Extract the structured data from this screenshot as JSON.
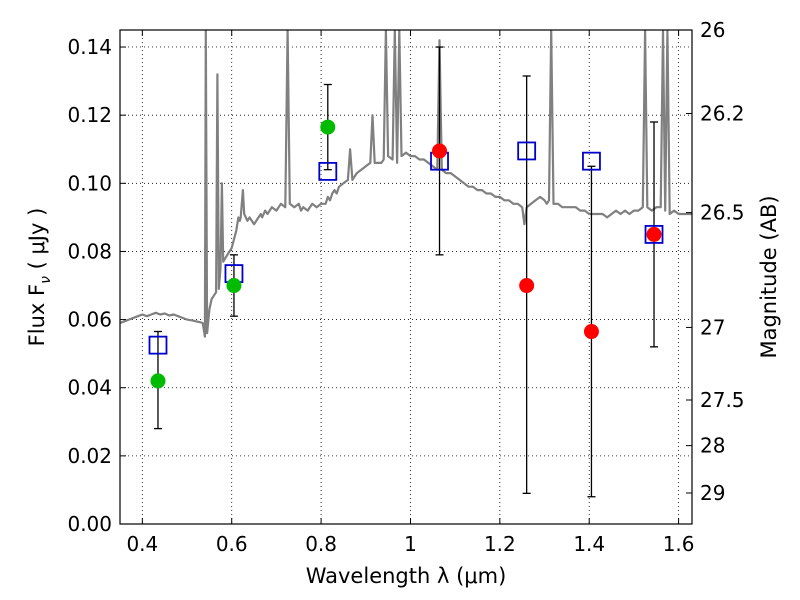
{
  "chart_data": {
    "type": "scatter",
    "xlabel": "Wavelength  λ (μm)",
    "ylabel": "Flux  F",
    "ylabel_subscript": "ν",
    "ylabel_unit": " ( μJy )",
    "y2label": "Magnitude (AB)",
    "xlim": [
      0.35,
      1.63
    ],
    "ylim": [
      0.0,
      0.145
    ],
    "grid": true,
    "x_ticks": [
      0.4,
      0.6,
      0.8,
      1.0,
      1.2,
      1.4,
      1.6
    ],
    "x_tick_labels": [
      "0.4",
      "0.6",
      "0.8",
      "1",
      "1.2",
      "1.4",
      "1.6"
    ],
    "y_ticks": [
      0.0,
      0.02,
      0.04,
      0.06,
      0.08,
      0.1,
      0.12,
      0.14
    ],
    "y_tick_labels": [
      "0.00",
      "0.02",
      "0.04",
      "0.06",
      "0.08",
      "0.10",
      "0.12",
      "0.14"
    ],
    "y2_ticks": [
      {
        "label": "26",
        "flux": 0.145
      },
      {
        "label": "26.2",
        "flux": 0.1205
      },
      {
        "label": "26.5",
        "flux": 0.0914
      },
      {
        "label": "27",
        "flux": 0.0577
      },
      {
        "label": "27.5",
        "flux": 0.0364
      },
      {
        "label": "28",
        "flux": 0.023
      },
      {
        "label": "29",
        "flux": 0.0091
      }
    ],
    "colors": {
      "spectrum": "#808080",
      "model": "#0000cc",
      "detected": "#00bb00",
      "measured": "#ff0000",
      "errorbar": "#000000"
    },
    "spectrum": [
      [
        0.35,
        0.059
      ],
      [
        0.36,
        0.0595
      ],
      [
        0.37,
        0.06
      ],
      [
        0.38,
        0.0605
      ],
      [
        0.39,
        0.061
      ],
      [
        0.4,
        0.0615
      ],
      [
        0.41,
        0.061
      ],
      [
        0.42,
        0.0615
      ],
      [
        0.43,
        0.062
      ],
      [
        0.44,
        0.0615
      ],
      [
        0.45,
        0.0618
      ],
      [
        0.46,
        0.0612
      ],
      [
        0.47,
        0.0615
      ],
      [
        0.48,
        0.061
      ],
      [
        0.49,
        0.0605
      ],
      [
        0.5,
        0.06
      ],
      [
        0.51,
        0.0598
      ],
      [
        0.52,
        0.0595
      ],
      [
        0.53,
        0.0592
      ],
      [
        0.535,
        0.059
      ],
      [
        0.54,
        0.055
      ],
      [
        0.542,
        0.145
      ],
      [
        0.545,
        0.056
      ],
      [
        0.55,
        0.063
      ],
      [
        0.555,
        0.066
      ],
      [
        0.56,
        0.067
      ],
      [
        0.565,
        0.068
      ],
      [
        0.568,
        0.132
      ],
      [
        0.571,
        0.069
      ],
      [
        0.575,
        0.075
      ],
      [
        0.578,
        0.1
      ],
      [
        0.581,
        0.077
      ],
      [
        0.59,
        0.079
      ],
      [
        0.6,
        0.081
      ],
      [
        0.61,
        0.086
      ],
      [
        0.615,
        0.09
      ],
      [
        0.618,
        0.089
      ],
      [
        0.62,
        0.09
      ],
      [
        0.625,
        0.098
      ],
      [
        0.628,
        0.091
      ],
      [
        0.635,
        0.089
      ],
      [
        0.64,
        0.09
      ],
      [
        0.645,
        0.089
      ],
      [
        0.65,
        0.088
      ],
      [
        0.66,
        0.09
      ],
      [
        0.665,
        0.091
      ],
      [
        0.668,
        0.09
      ],
      [
        0.675,
        0.092
      ],
      [
        0.68,
        0.091
      ],
      [
        0.69,
        0.093
      ],
      [
        0.7,
        0.092
      ],
      [
        0.71,
        0.094
      ],
      [
        0.72,
        0.093
      ],
      [
        0.725,
        0.145
      ],
      [
        0.73,
        0.094
      ],
      [
        0.74,
        0.093
      ],
      [
        0.75,
        0.094
      ],
      [
        0.755,
        0.092
      ],
      [
        0.76,
        0.093
      ],
      [
        0.77,
        0.092
      ],
      [
        0.78,
        0.094
      ],
      [
        0.79,
        0.093
      ],
      [
        0.8,
        0.094
      ],
      [
        0.81,
        0.094
      ],
      [
        0.815,
        0.096
      ],
      [
        0.82,
        0.095
      ],
      [
        0.825,
        0.097
      ],
      [
        0.83,
        0.098
      ],
      [
        0.835,
        0.097
      ],
      [
        0.84,
        0.099
      ],
      [
        0.85,
        0.1
      ],
      [
        0.86,
        0.101
      ],
      [
        0.865,
        0.11
      ],
      [
        0.87,
        0.101
      ],
      [
        0.875,
        0.102
      ],
      [
        0.88,
        0.103
      ],
      [
        0.89,
        0.104
      ],
      [
        0.9,
        0.105
      ],
      [
        0.91,
        0.106
      ],
      [
        0.915,
        0.12
      ],
      [
        0.92,
        0.106
      ],
      [
        0.93,
        0.106
      ],
      [
        0.935,
        0.106
      ],
      [
        0.94,
        0.107
      ],
      [
        0.945,
        0.145
      ],
      [
        0.95,
        0.108
      ],
      [
        0.96,
        0.107
      ],
      [
        0.965,
        0.145
      ],
      [
        0.97,
        0.106
      ],
      [
        0.975,
        0.145
      ],
      [
        0.98,
        0.108
      ],
      [
        0.99,
        0.109
      ],
      [
        1.0,
        0.108
      ],
      [
        1.01,
        0.108
      ],
      [
        1.02,
        0.107
      ],
      [
        1.03,
        0.107
      ],
      [
        1.04,
        0.106
      ],
      [
        1.05,
        0.105
      ],
      [
        1.06,
        0.104
      ],
      [
        1.065,
        0.142
      ],
      [
        1.07,
        0.104
      ],
      [
        1.08,
        0.103
      ],
      [
        1.09,
        0.103
      ],
      [
        1.1,
        0.102
      ],
      [
        1.11,
        0.101
      ],
      [
        1.12,
        0.1
      ],
      [
        1.13,
        0.099
      ],
      [
        1.14,
        0.099
      ],
      [
        1.15,
        0.098
      ],
      [
        1.16,
        0.098
      ],
      [
        1.17,
        0.097
      ],
      [
        1.18,
        0.097
      ],
      [
        1.19,
        0.096
      ],
      [
        1.2,
        0.096
      ],
      [
        1.21,
        0.095
      ],
      [
        1.22,
        0.095
      ],
      [
        1.23,
        0.094
      ],
      [
        1.24,
        0.094
      ],
      [
        1.25,
        0.093
      ],
      [
        1.255,
        0.088
      ],
      [
        1.258,
        0.091
      ],
      [
        1.26,
        0.093
      ],
      [
        1.27,
        0.094
      ],
      [
        1.28,
        0.095
      ],
      [
        1.29,
        0.096
      ],
      [
        1.3,
        0.095
      ],
      [
        1.305,
        0.094
      ],
      [
        1.31,
        0.095
      ],
      [
        1.315,
        0.145
      ],
      [
        1.32,
        0.094
      ],
      [
        1.33,
        0.094
      ],
      [
        1.34,
        0.093
      ],
      [
        1.35,
        0.093
      ],
      [
        1.36,
        0.093
      ],
      [
        1.37,
        0.093
      ],
      [
        1.38,
        0.092
      ],
      [
        1.39,
        0.092
      ],
      [
        1.4,
        0.091
      ],
      [
        1.41,
        0.091
      ],
      [
        1.42,
        0.091
      ],
      [
        1.43,
        0.091
      ],
      [
        1.44,
        0.09
      ],
      [
        1.45,
        0.091
      ],
      [
        1.46,
        0.092
      ],
      [
        1.47,
        0.091
      ],
      [
        1.48,
        0.092
      ],
      [
        1.49,
        0.091
      ],
      [
        1.5,
        0.092
      ],
      [
        1.51,
        0.092
      ],
      [
        1.52,
        0.093
      ],
      [
        1.525,
        0.145
      ],
      [
        1.53,
        0.093
      ],
      [
        1.54,
        0.092
      ],
      [
        1.55,
        0.093
      ],
      [
        1.56,
        0.093
      ],
      [
        1.565,
        0.145
      ],
      [
        1.57,
        0.092
      ],
      [
        1.575,
        0.145
      ],
      [
        1.58,
        0.091
      ],
      [
        1.59,
        0.092
      ],
      [
        1.6,
        0.091
      ],
      [
        1.61,
        0.091
      ],
      [
        1.62,
        0.091
      ],
      [
        1.63,
        0.091
      ]
    ],
    "model_points": [
      {
        "x": 0.435,
        "y": 0.0525
      },
      {
        "x": 0.605,
        "y": 0.0735
      },
      {
        "x": 0.815,
        "y": 0.1035
      },
      {
        "x": 1.065,
        "y": 0.1065
      },
      {
        "x": 1.26,
        "y": 0.1095
      },
      {
        "x": 1.405,
        "y": 0.1065
      },
      {
        "x": 1.545,
        "y": 0.085
      }
    ],
    "detected_points": [
      {
        "x": 0.435,
        "y": 0.042,
        "err_low": 0.028,
        "err_high": 0.0565
      },
      {
        "x": 0.605,
        "y": 0.07,
        "err_low": 0.061,
        "err_high": 0.079
      },
      {
        "x": 0.815,
        "y": 0.1165,
        "err_low": 0.104,
        "err_high": 0.129
      }
    ],
    "measured_points": [
      {
        "x": 1.065,
        "y": 0.1095,
        "err_low": 0.079,
        "err_high": 0.14
      },
      {
        "x": 1.26,
        "y": 0.07,
        "err_low": 0.009,
        "err_high": 0.1315
      },
      {
        "x": 1.405,
        "y": 0.0565,
        "err_low": 0.008,
        "err_high": 0.105
      },
      {
        "x": 1.545,
        "y": 0.085,
        "err_low": 0.052,
        "err_high": 0.118
      }
    ]
  }
}
